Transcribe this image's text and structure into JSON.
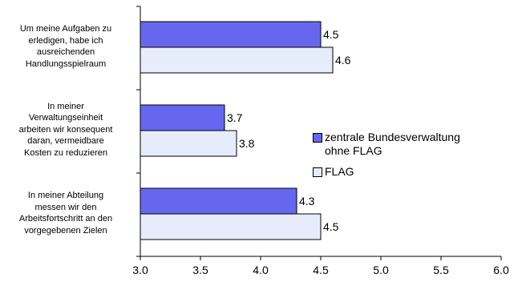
{
  "chart_data": {
    "type": "bar",
    "orientation": "horizontal",
    "categories": [
      "Um meine Aufgaben zu erledigen, habe ich ausreichenden Handlungsspielraum",
      "In meiner Verwaltungseinheit arbeiten wir konsequent daran, vermeidbare Kosten zu reduzieren",
      "In meiner Abteilung messen wir den Arbeitsfortschritt an den vorgegebenen Zielen"
    ],
    "category_lines": [
      [
        "Um meine Aufgaben zu",
        "erledigen, habe ich",
        "ausreichenden",
        "Handlungsspielraum"
      ],
      [
        "In meiner",
        "Verwaltungseinheit",
        "arbeiten wir konsequent",
        "daran, vermeidbare",
        "Kosten zu reduzieren"
      ],
      [
        "In meiner Abteilung",
        "messen wir den",
        "Arbeitsfortschritt an den",
        "vorgegebenen Zielen"
      ]
    ],
    "series": [
      {
        "name": "zentrale Bundesverwaltung ohne FLAG",
        "values": [
          4.5,
          3.7,
          4.3
        ],
        "color": "#6666ee"
      },
      {
        "name": "FLAG",
        "values": [
          4.6,
          3.8,
          4.5
        ],
        "color": "#e6ecfa"
      }
    ],
    "xlim": [
      3.0,
      6.0
    ],
    "xticks": [
      "3.0",
      "3.5",
      "4.0",
      "4.5",
      "5.0",
      "5.5",
      "6.0"
    ],
    "grid": false,
    "legend_position": "right",
    "title": "",
    "xlabel": "",
    "ylabel": ""
  },
  "legend": {
    "entries": [
      {
        "lines": [
          "zentrale Bundesverwaltung",
          "ohne FLAG"
        ],
        "color": "#6666ee"
      },
      {
        "lines": [
          "FLAG"
        ],
        "color": "#e6ecfa"
      }
    ]
  }
}
